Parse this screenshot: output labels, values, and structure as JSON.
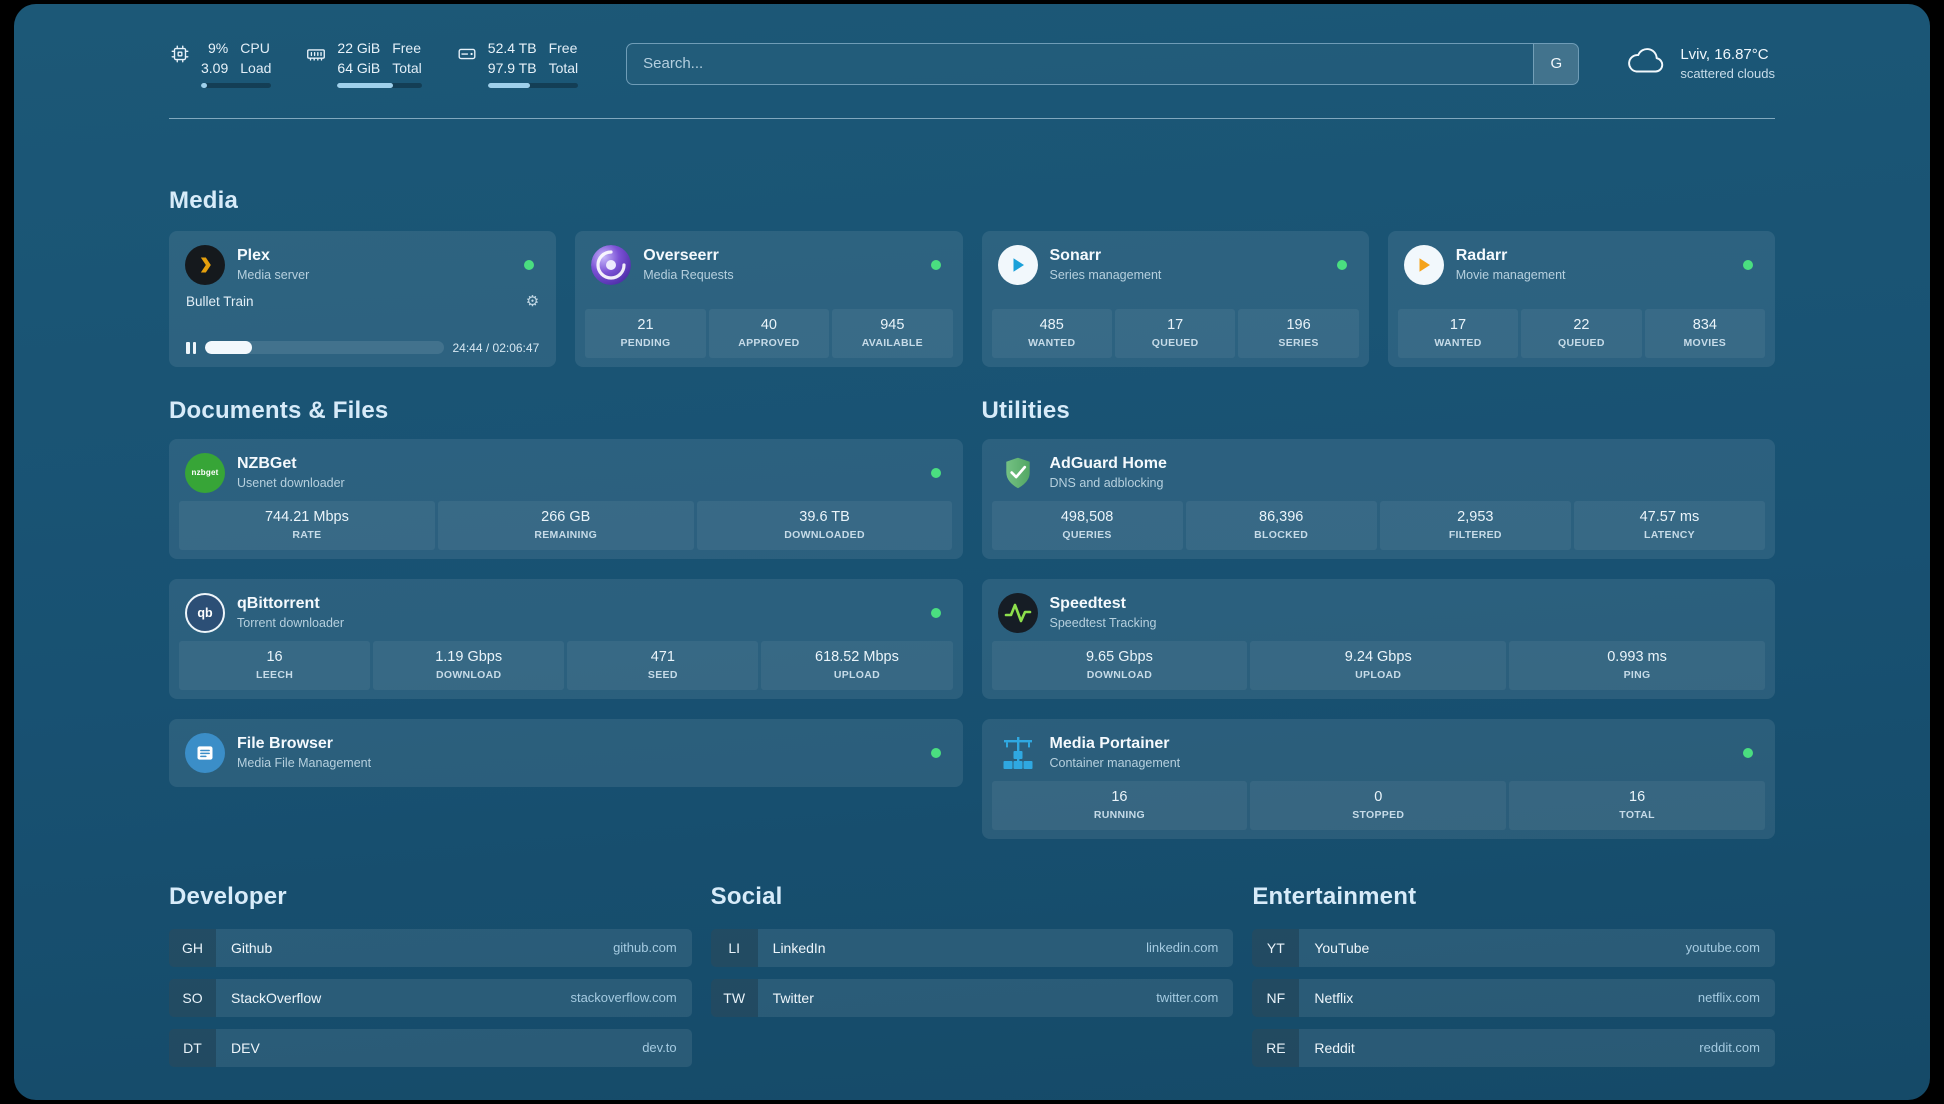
{
  "colors": {
    "status_online": "#4ade80",
    "background": "#185172",
    "bar_fill": "#9fd0eb"
  },
  "topbar": {
    "cpu": {
      "value_top": "9%",
      "value_bottom": "3.09",
      "label_top": "CPU",
      "label_bottom": "Load",
      "bar_percent": 9
    },
    "memory": {
      "value_top": "22 GiB",
      "value_bottom": "64 GiB",
      "label_top": "Free",
      "label_bottom": "Total",
      "bar_percent": 66
    },
    "disk": {
      "value_top": "52.4 TB",
      "value_bottom": "97.9 TB",
      "label_top": "Free",
      "label_bottom": "Total",
      "bar_percent": 47
    },
    "search": {
      "placeholder": "Search...",
      "provider_label": "G"
    },
    "weather": {
      "location": "Lviv, 16.87°C",
      "condition": "scattered clouds"
    }
  },
  "media": {
    "heading": "Media",
    "plex": {
      "name": "Plex",
      "subtitle": "Media server",
      "now_playing": "Bullet Train",
      "time": "24:44 / 02:06:47",
      "progress_percent": 19.5
    },
    "overseerr": {
      "name": "Overseerr",
      "subtitle": "Media Requests",
      "stats": [
        {
          "value": "21",
          "label": "PENDING"
        },
        {
          "value": "40",
          "label": "APPROVED"
        },
        {
          "value": "945",
          "label": "AVAILABLE"
        }
      ]
    },
    "sonarr": {
      "name": "Sonarr",
      "subtitle": "Series management",
      "stats": [
        {
          "value": "485",
          "label": "WANTED"
        },
        {
          "value": "17",
          "label": "QUEUED"
        },
        {
          "value": "196",
          "label": "SERIES"
        }
      ]
    },
    "radarr": {
      "name": "Radarr",
      "subtitle": "Movie management",
      "stats": [
        {
          "value": "17",
          "label": "WANTED"
        },
        {
          "value": "22",
          "label": "QUEUED"
        },
        {
          "value": "834",
          "label": "MOVIES"
        }
      ]
    }
  },
  "documents": {
    "heading": "Documents & Files",
    "nzbget": {
      "name": "NZBGet",
      "subtitle": "Usenet downloader",
      "icon_text": "nzbget",
      "stats": [
        {
          "value": "744.21 Mbps",
          "label": "RATE"
        },
        {
          "value": "266 GB",
          "label": "REMAINING"
        },
        {
          "value": "39.6 TB",
          "label": "DOWNLOADED"
        }
      ]
    },
    "qbittorrent": {
      "name": "qBittorrent",
      "subtitle": "Torrent downloader",
      "icon_text": "qb",
      "stats": [
        {
          "value": "16",
          "label": "LEECH"
        },
        {
          "value": "1.19 Gbps",
          "label": "DOWNLOAD"
        },
        {
          "value": "471",
          "label": "SEED"
        },
        {
          "value": "618.52 Mbps",
          "label": "UPLOAD"
        }
      ]
    },
    "filebrowser": {
      "name": "File Browser",
      "subtitle": "Media File Management"
    }
  },
  "utilities": {
    "heading": "Utilities",
    "adguard": {
      "name": "AdGuard Home",
      "subtitle": "DNS and adblocking",
      "stats": [
        {
          "value": "498,508",
          "label": "QUERIES"
        },
        {
          "value": "86,396",
          "label": "BLOCKED"
        },
        {
          "value": "2,953",
          "label": "FILTERED"
        },
        {
          "value": "47.57 ms",
          "label": "LATENCY"
        }
      ]
    },
    "speedtest": {
      "name": "Speedtest",
      "subtitle": "Speedtest Tracking",
      "stats": [
        {
          "value": "9.65 Gbps",
          "label": "DOWNLOAD"
        },
        {
          "value": "9.24 Gbps",
          "label": "UPLOAD"
        },
        {
          "value": "0.993 ms",
          "label": "PING"
        }
      ]
    },
    "portainer": {
      "name": "Media Portainer",
      "subtitle": "Container management",
      "stats": [
        {
          "value": "16",
          "label": "RUNNING"
        },
        {
          "value": "0",
          "label": "STOPPED"
        },
        {
          "value": "16",
          "label": "TOTAL"
        }
      ]
    }
  },
  "bookmarks": {
    "developer": {
      "heading": "Developer",
      "items": [
        {
          "abbr": "GH",
          "name": "Github",
          "domain": "github.com"
        },
        {
          "abbr": "SO",
          "name": "StackOverflow",
          "domain": "stackoverflow.com"
        },
        {
          "abbr": "DT",
          "name": "DEV",
          "domain": "dev.to"
        }
      ]
    },
    "social": {
      "heading": "Social",
      "items": [
        {
          "abbr": "LI",
          "name": "LinkedIn",
          "domain": "linkedin.com"
        },
        {
          "abbr": "TW",
          "name": "Twitter",
          "domain": "twitter.com"
        }
      ]
    },
    "entertainment": {
      "heading": "Entertainment",
      "items": [
        {
          "abbr": "YT",
          "name": "YouTube",
          "domain": "youtube.com"
        },
        {
          "abbr": "NF",
          "name": "Netflix",
          "domain": "netflix.com"
        },
        {
          "abbr": "RE",
          "name": "Reddit",
          "domain": "reddit.com"
        }
      ]
    }
  }
}
